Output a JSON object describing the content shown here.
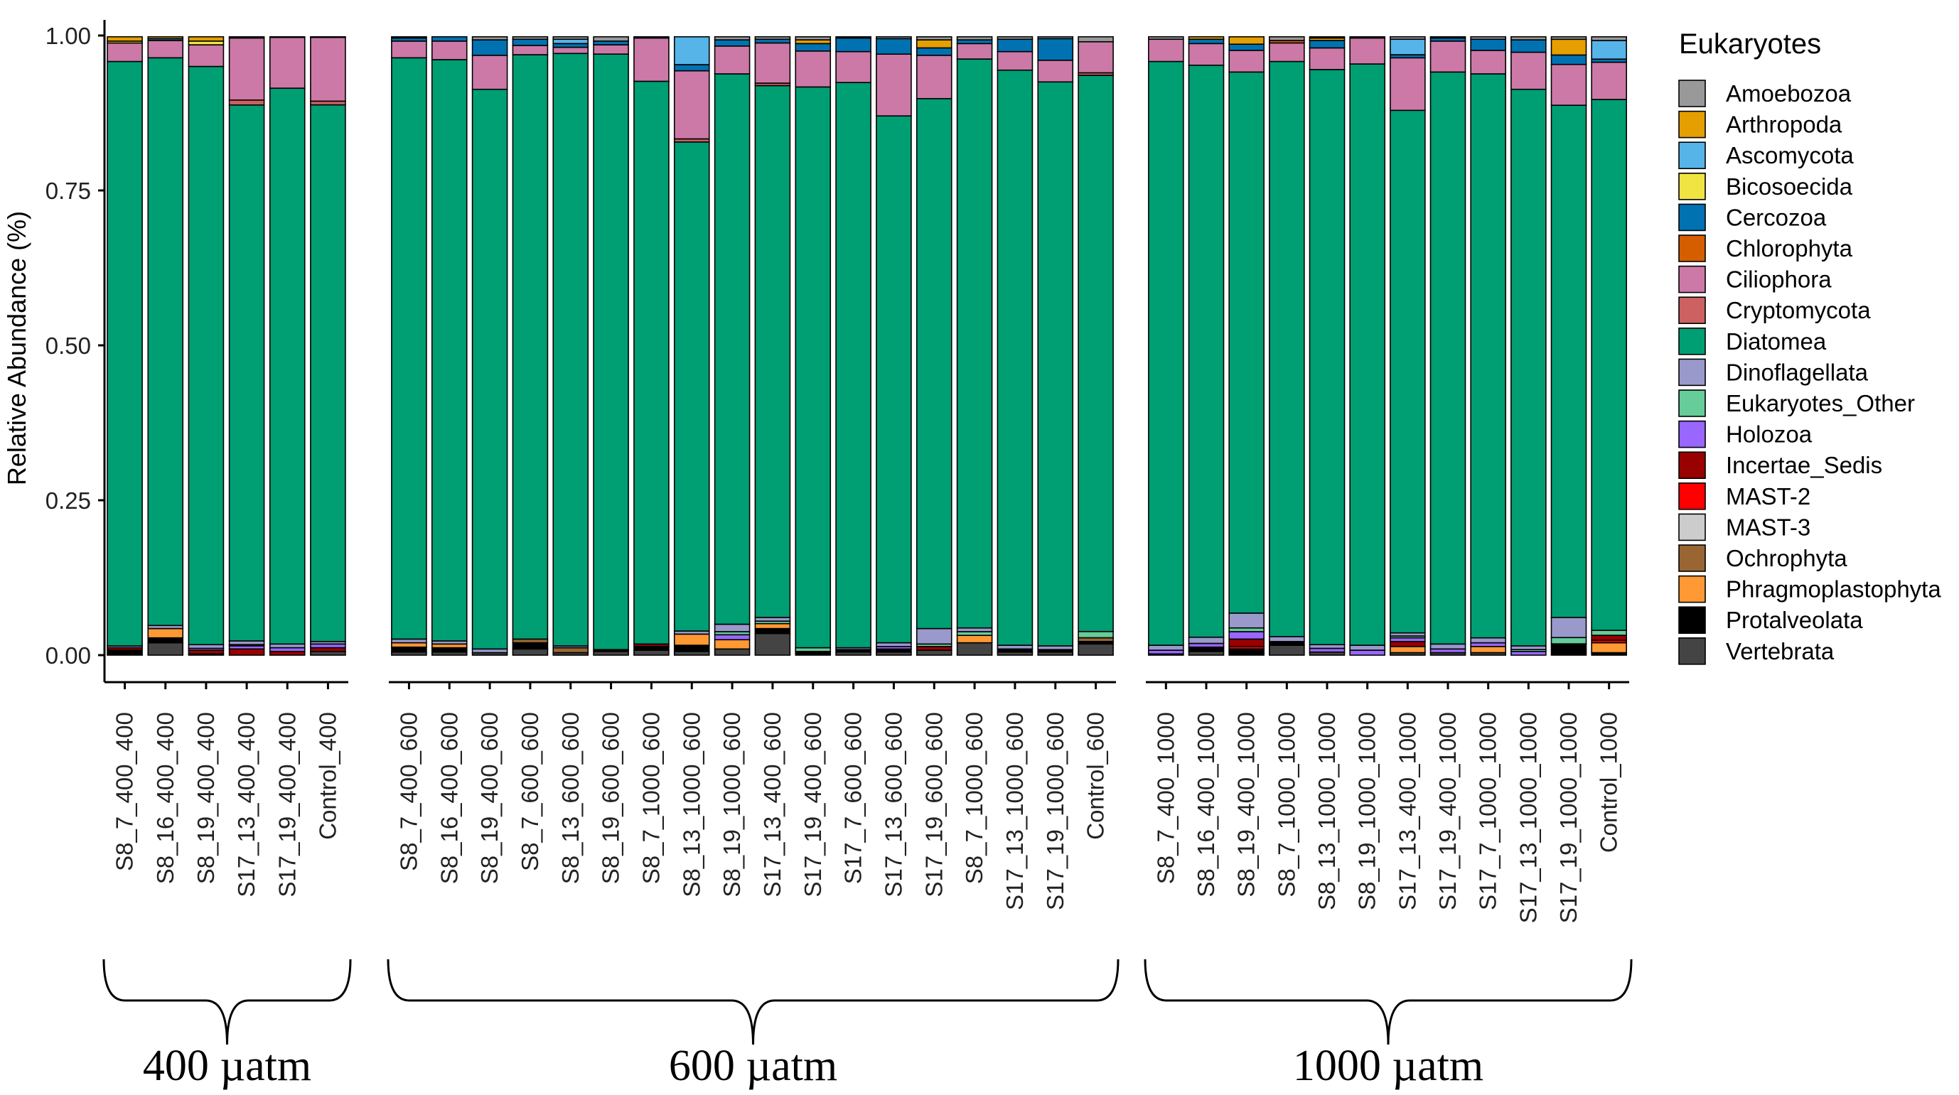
{
  "chart_data": {
    "type": "bar",
    "stacked": true,
    "ylabel": "Relative Abundance (%)",
    "ylim": [
      0,
      1
    ],
    "yticks": [
      "0.00",
      "0.25",
      "0.50",
      "0.75",
      "1.00"
    ],
    "legend": {
      "title": "Eukaryotes",
      "position": "right",
      "entries": [
        {
          "name": "Amoebozoa",
          "color": "#999999"
        },
        {
          "name": "Arthropoda",
          "color": "#E69F00"
        },
        {
          "name": "Ascomycota",
          "color": "#56B4E9"
        },
        {
          "name": "Bicosoecida",
          "color": "#F0E442"
        },
        {
          "name": "Cercozoa",
          "color": "#0072B2"
        },
        {
          "name": "Chlorophyta",
          "color": "#D55E00"
        },
        {
          "name": "Ciliophora",
          "color": "#CC79A7"
        },
        {
          "name": "Cryptomycota",
          "color": "#CD6060"
        },
        {
          "name": "Diatomea",
          "color": "#009E73"
        },
        {
          "name": "Dinoflagellata",
          "color": "#9999CC"
        },
        {
          "name": "Eukaryotes_Other",
          "color": "#66CC99"
        },
        {
          "name": "Holozoa",
          "color": "#9966FF"
        },
        {
          "name": "Incertae_Sedis",
          "color": "#990000"
        },
        {
          "name": "MAST-2",
          "color": "#FF0000"
        },
        {
          "name": "MAST-3",
          "color": "#CCCCCC"
        },
        {
          "name": "Ochrophyta",
          "color": "#996633"
        },
        {
          "name": "Phragmoplastophyta",
          "color": "#FF9933"
        },
        {
          "name": "Protalveolata",
          "color": "#000000"
        },
        {
          "name": "Vertebrata",
          "color": "#444444"
        }
      ]
    },
    "groups": [
      {
        "label": "400 µatm",
        "samples": [
          {
            "name": "S8_7_400_400",
            "comp": {
              "Vertebrata": 0.002,
              "Protalveolata": 0.006,
              "Incertae_Sedis": 0.004,
              "Dinoflagellata": 0.003,
              "Diatomea": 0.945,
              "Ciliophora": 0.03,
              "Arthropoda": 0.007,
              "Bicosoecida": 0.003
            }
          },
          {
            "name": "S8_16_400_400",
            "comp": {
              "Vertebrata": 0.02,
              "Phragmoplastophyta": 0.015,
              "Protalveolata": 0.008,
              "Dinoflagellata": 0.005,
              "Diatomea": 0.918,
              "Ciliophora": 0.028,
              "Arthropoda": 0.003,
              "Cercozoa": 0.003
            }
          },
          {
            "name": "S8_19_400_400",
            "comp": {
              "Incertae_Sedis": 0.006,
              "Holozoa": 0.003,
              "Dinoflagellata": 0.006,
              "Diatomea": 0.935,
              "Ciliophora": 0.035,
              "Arthropoda": 0.007,
              "Bicosoecida": 0.006,
              "Protalveolata": 0.002
            }
          },
          {
            "name": "S17_13_400_400",
            "comp": {
              "Incertae_Sedis": 0.01,
              "Holozoa": 0.005,
              "Dinoflagellata": 0.006,
              "Eukaryotes_Other": 0.002,
              "Diatomea": 0.864,
              "Cryptomycota": 0.008,
              "Ciliophora": 0.1,
              "Amoebozoa": 0.002
            }
          },
          {
            "name": "S17_19_400_400",
            "comp": {
              "Incertae_Sedis": 0.006,
              "Holozoa": 0.006,
              "Dinoflagellata": 0.006,
              "Diatomea": 0.897,
              "Ciliophora": 0.082,
              "Amoebozoa": 0.001
            }
          },
          {
            "name": "Control_400",
            "comp": {
              "Vertebrata": 0.006,
              "Incertae_Sedis": 0.006,
              "Holozoa": 0.006,
              "Dinoflagellata": 0.004,
              "Diatomea": 0.867,
              "Cryptomycota": 0.006,
              "Ciliophora": 0.103,
              "Amoebozoa": 0.001
            }
          }
        ]
      },
      {
        "label": "600 µatm",
        "samples": [
          {
            "name": "S8_7_400_600",
            "comp": {
              "Phragmoplastophyta": 0.007,
              "Vertebrata": 0.005,
              "Protalveolata": 0.008,
              "Dinoflagellata": 0.006,
              "Diatomea": 0.94,
              "Ciliophora": 0.027,
              "Cercozoa": 0.005,
              "Amoebozoa": 0.002
            }
          },
          {
            "name": "S8_16_400_600",
            "comp": {
              "Phragmoplastophyta": 0.006,
              "Vertebrata": 0.005,
              "Protalveolata": 0.004,
              "Dinoflagellata": 0.005,
              "Diatomea": 0.94,
              "Ciliophora": 0.03,
              "Cercozoa": 0.007,
              "Protalveolata2": 0.003
            }
          },
          {
            "name": "S8_19_400_600",
            "comp": {
              "Vertebrata": 0.004,
              "Dinoflagellata": 0.006,
              "Diatomea": 0.905,
              "Ciliophora": 0.055,
              "Cercozoa": 0.025,
              "Amoebozoa": 0.005
            }
          },
          {
            "name": "S8_7_600_600",
            "comp": {
              "Vertebrata": 0.01,
              "Ochrophyta": 0.006,
              "Protalveolata": 0.01,
              "Diatomea": 0.945,
              "Ciliophora": 0.015,
              "Cercozoa": 0.01,
              "Amoebozoa": 0.004
            }
          },
          {
            "name": "S8_13_600_600",
            "comp": {
              "Ochrophyta": 0.008,
              "Vertebrata": 0.004,
              "Dinoflagellata": 0.003,
              "Diatomea": 0.958,
              "Ciliophora": 0.01,
              "Ascomycota": 0.007,
              "Cercozoa": 0.006,
              "Amoebozoa": 0.004
            }
          },
          {
            "name": "S8_19_600_600",
            "comp": {
              "Vertebrata": 0.006,
              "Protalveolata": 0.003,
              "Diatomea": 0.963,
              "Ciliophora": 0.015,
              "Cercozoa": 0.006,
              "Amoebozoa": 0.007
            }
          },
          {
            "name": "S8_7_1000_600",
            "comp": {
              "Vertebrata": 0.008,
              "Protalveolata": 0.006,
              "Diatomea": 0.91,
              "Incertae_Sedis": 0.004,
              "Ciliophora": 0.07,
              "Amoebozoa": 0.002
            }
          },
          {
            "name": "S8_13_1000_600",
            "comp": {
              "Phragmoplastophyta": 0.018,
              "Vertebrata": 0.006,
              "Protalveolata": 0.01,
              "Dinoflagellata": 0.005,
              "Diatomea": 0.79,
              "Cryptomycota": 0.005,
              "Ciliophora": 0.11,
              "Cercozoa": 0.01,
              "Ascomycota": 0.045
            }
          },
          {
            "name": "S8_19_1000_600",
            "comp": {
              "Vertebrata": 0.01,
              "Phragmoplastophyta": 0.015,
              "Holozoa": 0.008,
              "Dinoflagellata": 0.012,
              "Eukaryotes_Other": 0.005,
              "Diatomea": 0.89,
              "Ciliophora": 0.045,
              "Cercozoa": 0.01,
              "Amoebozoa": 0.005
            }
          },
          {
            "name": "S17_13_400_600",
            "comp": {
              "Vertebrata": 0.035,
              "Protalveolata": 0.008,
              "Phragmoplastophyta": 0.008,
              "Dinoflagellata": 0.006,
              "Eukaryotes_Other": 0.004,
              "Diatomea": 0.86,
              "Ciliophora": 0.065,
              "Cercozoa": 0.006,
              "Cryptomycota": 0.004,
              "Amoebozoa": 0.004
            }
          },
          {
            "name": "S17_19_400_600",
            "comp": {
              "Vertebrata": 0.002,
              "Arthropoda": 0.006,
              "Protalveolata": 0.004,
              "Eukaryotes_Other": 0.006,
              "Diatomea": 0.905,
              "Ciliophora": 0.058,
              "Cercozoa": 0.012,
              "Amoebozoa": 0.005
            }
          },
          {
            "name": "S17_7_600_600",
            "comp": {
              "Vertebrata": 0.005,
              "Protalveolata": 0.004,
              "Dinoflagellata": 0.003,
              "Diatomea": 0.914,
              "Ciliophora": 0.05,
              "Cercozoa": 0.022,
              "Amoebozoa": 0.002
            }
          },
          {
            "name": "S17_13_600_600",
            "comp": {
              "Vertebrata": 0.005,
              "Protalveolata": 0.005,
              "Holozoa": 0.004,
              "Dinoflagellata": 0.006,
              "Diatomea": 0.852,
              "Ciliophora": 0.1,
              "Cercozoa": 0.025,
              "Amoebozoa": 0.003
            }
          },
          {
            "name": "S17_19_600_600",
            "comp": {
              "Vertebrata": 0.008,
              "Incertae_Sedis": 0.006,
              "Dinoflagellata": 0.025,
              "Eukaryotes_Other": 0.004,
              "Diatomea": 0.857,
              "Ciliophora": 0.07,
              "Cercozoa": 0.012,
              "Arthropoda": 0.013,
              "Amoebozoa": 0.005
            }
          },
          {
            "name": "S8_7_1000_600",
            "comp": {
              "Vertebrata": 0.02,
              "Phragmoplastophyta": 0.012,
              "Dinoflagellata": 0.006,
              "Eukaryotes_Other": 0.006,
              "Diatomea": 0.92,
              "Ciliophora": 0.025,
              "Cercozoa": 0.006,
              "Amoebozoa": 0.005
            }
          },
          {
            "name": "S17_13_1000_600",
            "comp": {
              "Vertebrata": 0.005,
              "Protalveolata": 0.005,
              "Dinoflagellata": 0.006,
              "Diatomea": 0.93,
              "Ciliophora": 0.03,
              "Cercozoa": 0.02,
              "Amoebozoa": 0.004
            }
          },
          {
            "name": "S17_19_1000_600",
            "comp": {
              "Vertebrata": 0.005,
              "Protalveolata": 0.004,
              "Dinoflagellata": 0.006,
              "Diatomea": 0.912,
              "Ciliophora": 0.035,
              "Cercozoa": 0.035,
              "Amoebozoa": 0.003
            }
          },
          {
            "name": "Control_600",
            "comp": {
              "Vertebrata": 0.018,
              "Ochrophyta": 0.006,
              "Protalveolata": 0.004,
              "Eukaryotes_Other": 0.01,
              "Diatomea": 0.895,
              "Ciliophora": 0.05,
              "Cryptomycota": 0.004,
              "Amoebozoa": 0.008
            }
          }
        ]
      },
      {
        "label": "1000 µatm",
        "samples": [
          {
            "name": "S8_7_400_1000",
            "comp": {
              "Vertebrata": 0.002,
              "Holozoa": 0.006,
              "Dinoflagellata": 0.008,
              "Diatomea": 0.944,
              "Ciliophora": 0.036,
              "Amoebozoa": 0.004
            }
          },
          {
            "name": "S8_16_400_1000",
            "comp": {
              "Vertebrata": 0.006,
              "Holozoa": 0.006,
              "Dinoflagellata": 0.01,
              "Protalveolata": 0.004,
              "Diatomea": 0.925,
              "Ciliophora": 0.035,
              "Cercozoa": 0.007,
              "Arthropoda": 0.004,
              "Protalveolata2": 0.003
            }
          },
          {
            "name": "S8_19_400_1000",
            "comp": {
              "Incertae_Sedis": 0.012,
              "MAST-2": 0.004,
              "Holozoa": 0.012,
              "Eukaryotes_Other": 0.006,
              "Dinoflagellata": 0.024,
              "Diatomea": 0.875,
              "Ciliophora": 0.035,
              "Protalveolata": 0.004,
              "Cercozoa": 0.01,
              "Arthropoda": 0.012,
              "Protalveolata2": 0.006
            }
          },
          {
            "name": "S8_7_1000_1000",
            "comp": {
              "Vertebrata": 0.016,
              "Protalveolata": 0.006,
              "Dinoflagellata": 0.008,
              "Diatomea": 0.93,
              "Ciliophora": 0.03,
              "Chlorophyta": 0.004,
              "Amoebozoa": 0.006
            }
          },
          {
            "name": "S8_13_1000_1000",
            "comp": {
              "Vertebrata": 0.005,
              "Holozoa": 0.006,
              "Dinoflagellata": 0.006,
              "Diatomea": 0.93,
              "Ciliophora": 0.035,
              "Cercozoa": 0.012,
              "Arthropoda": 0.004,
              "Amoebozoa": 0.002
            }
          },
          {
            "name": "S8_19_1000_1000",
            "comp": {
              "Holozoa": 0.008,
              "Dinoflagellata": 0.008,
              "Diatomea": 0.94,
              "Ciliophora": 0.042,
              "Amoebozoa": 0.002
            }
          },
          {
            "name": "S17_13_400_1000",
            "comp": {
              "Phragmoplastophyta": 0.01,
              "Vertebrata": 0.004,
              "Incertae_Sedis": 0.008,
              "Holozoa": 0.006,
              "Dinoflagellata": 0.005,
              "Eukaryotes_Other": 0.003,
              "Diatomea": 0.845,
              "Ciliophora": 0.085,
              "Cercozoa": 0.005,
              "Ascomycota": 0.025,
              "Amoebozoa": 0.004
            }
          },
          {
            "name": "S17_19_400_1000",
            "comp": {
              "Vertebrata": 0.004,
              "Holozoa": 0.006,
              "Dinoflagellata": 0.008,
              "Diatomea": 0.925,
              "Ciliophora": 0.05,
              "Cercozoa": 0.005,
              "Amoebozoa": 0.002
            }
          },
          {
            "name": "S17_7_1000_1000",
            "comp": {
              "Phragmoplastophyta": 0.01,
              "Vertebrata": 0.004,
              "Holozoa": 0.006,
              "Dinoflagellata": 0.008,
              "Diatomea": 0.912,
              "Ciliophora": 0.038,
              "Cercozoa": 0.018,
              "Amoebozoa": 0.004
            }
          },
          {
            "name": "S17_13_1000_1000",
            "comp": {
              "Holozoa": 0.006,
              "Dinoflagellata": 0.006,
              "Eukaryotes_Other": 0.003,
              "Diatomea": 0.9,
              "Ciliophora": 0.06,
              "Cercozoa": 0.02,
              "Amoebozoa": 0.005
            }
          },
          {
            "name": "S17_19_1000_1000",
            "comp": {
              "Protalveolata": 0.018,
              "Eukaryotes_Other": 0.01,
              "Dinoflagellata": 0.032,
              "Diatomea": 0.815,
              "Ciliophora": 0.065,
              "Cercozoa": 0.015,
              "Arthropoda": 0.025,
              "Amoebozoa": 0.004
            }
          },
          {
            "name": "Control_1000",
            "comp": {
              "Phragmoplastophyta": 0.016,
              "Incertae_Sedis": 0.008,
              "Protalveolata": 0.004,
              "MAST-2": 0.004,
              "Eukaryotes_Other": 0.008,
              "Diatomea": 0.855,
              "Ciliophora": 0.06,
              "Cercozoa": 0.005,
              "Ascomycota": 0.03,
              "Amoebozoa": 0.006
            }
          }
        ]
      }
    ]
  }
}
